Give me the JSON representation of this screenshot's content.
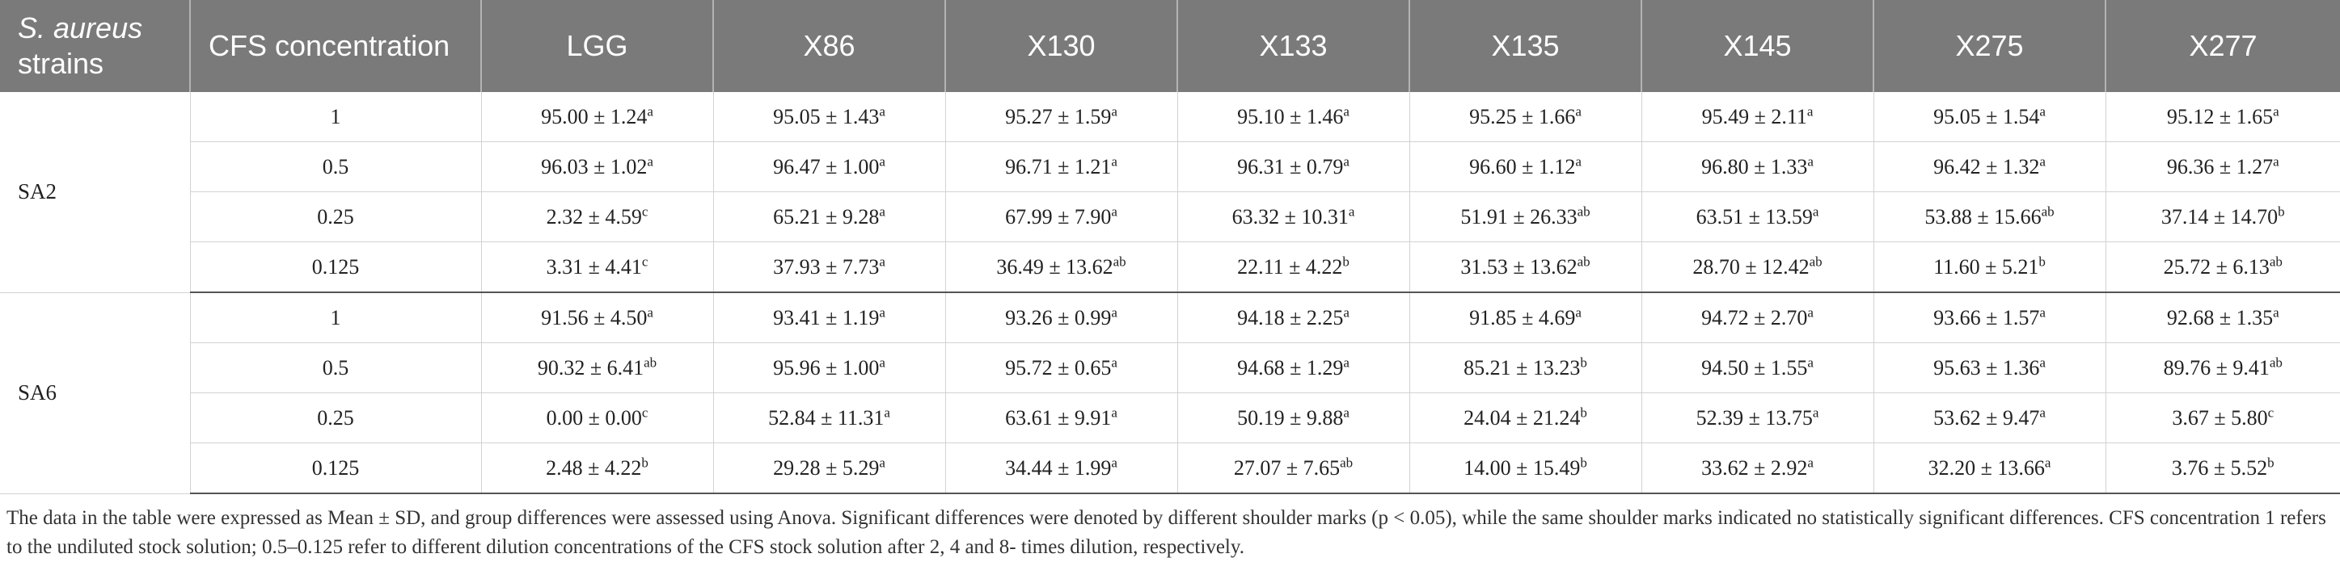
{
  "header": {
    "strain_prefix": "S. aureus",
    "strain_suffix": "strains",
    "conc": "CFS concentration",
    "cols": [
      "LGG",
      "X86",
      "X130",
      "X133",
      "X135",
      "X145",
      "X275",
      "X277"
    ]
  },
  "groups": [
    {
      "strain": "SA2",
      "rows": [
        {
          "conc": "1",
          "cells": [
            [
              "95.00 ± 1.24",
              "a"
            ],
            [
              "95.05 ± 1.43",
              "a"
            ],
            [
              "95.27 ± 1.59",
              "a"
            ],
            [
              "95.10 ± 1.46",
              "a"
            ],
            [
              "95.25 ± 1.66",
              "a"
            ],
            [
              "95.49 ± 2.11",
              "a"
            ],
            [
              "95.05 ± 1.54",
              "a"
            ],
            [
              "95.12 ± 1.65",
              "a"
            ]
          ]
        },
        {
          "conc": "0.5",
          "cells": [
            [
              "96.03 ± 1.02",
              "a"
            ],
            [
              "96.47 ± 1.00",
              "a"
            ],
            [
              "96.71 ± 1.21",
              "a"
            ],
            [
              "96.31 ± 0.79",
              "a"
            ],
            [
              "96.60 ± 1.12",
              "a"
            ],
            [
              "96.80 ± 1.33",
              "a"
            ],
            [
              "96.42 ± 1.32",
              "a"
            ],
            [
              "96.36 ± 1.27",
              "a"
            ]
          ]
        },
        {
          "conc": "0.25",
          "cells": [
            [
              "2.32 ± 4.59",
              "c"
            ],
            [
              "65.21 ± 9.28",
              "a"
            ],
            [
              "67.99 ± 7.90",
              "a"
            ],
            [
              "63.32 ± 10.31",
              "a"
            ],
            [
              "51.91 ± 26.33",
              "ab"
            ],
            [
              "63.51 ± 13.59",
              "a"
            ],
            [
              "53.88 ± 15.66",
              "ab"
            ],
            [
              "37.14 ± 14.70",
              "b"
            ]
          ]
        },
        {
          "conc": "0.125",
          "cells": [
            [
              "3.31 ± 4.41",
              "c"
            ],
            [
              "37.93 ± 7.73",
              "a"
            ],
            [
              "36.49 ± 13.62",
              "ab"
            ],
            [
              "22.11 ± 4.22",
              "b"
            ],
            [
              "31.53 ± 13.62",
              "ab"
            ],
            [
              "28.70 ± 12.42",
              "ab"
            ],
            [
              "11.60 ± 5.21",
              "b"
            ],
            [
              "25.72 ± 6.13",
              "ab"
            ]
          ]
        }
      ]
    },
    {
      "strain": "SA6",
      "rows": [
        {
          "conc": "1",
          "cells": [
            [
              "91.56 ± 4.50",
              "a"
            ],
            [
              "93.41 ± 1.19",
              "a"
            ],
            [
              "93.26 ± 0.99",
              "a"
            ],
            [
              "94.18 ± 2.25",
              "a"
            ],
            [
              "91.85 ± 4.69",
              "a"
            ],
            [
              "94.72 ± 2.70",
              "a"
            ],
            [
              "93.66 ± 1.57",
              "a"
            ],
            [
              "92.68 ± 1.35",
              "a"
            ]
          ]
        },
        {
          "conc": "0.5",
          "cells": [
            [
              "90.32 ± 6.41",
              "ab"
            ],
            [
              "95.96 ± 1.00",
              "a"
            ],
            [
              "95.72 ± 0.65",
              "a"
            ],
            [
              "94.68 ± 1.29",
              "a"
            ],
            [
              "85.21 ± 13.23",
              "b"
            ],
            [
              "94.50 ± 1.55",
              "a"
            ],
            [
              "95.63 ± 1.36",
              "a"
            ],
            [
              "89.76 ± 9.41",
              "ab"
            ]
          ]
        },
        {
          "conc": "0.25",
          "cells": [
            [
              "0.00 ± 0.00",
              "c"
            ],
            [
              "52.84 ± 11.31",
              "a"
            ],
            [
              "63.61 ± 9.91",
              "a"
            ],
            [
              "50.19 ± 9.88",
              "a"
            ],
            [
              "24.04 ± 21.24",
              "b"
            ],
            [
              "52.39 ± 13.75",
              "a"
            ],
            [
              "53.62 ± 9.47",
              "a"
            ],
            [
              "3.67 ± 5.80",
              "c"
            ]
          ]
        },
        {
          "conc": "0.125",
          "cells": [
            [
              "2.48 ± 4.22",
              "b"
            ],
            [
              "29.28 ± 5.29",
              "a"
            ],
            [
              "34.44 ± 1.99",
              "a"
            ],
            [
              "27.07 ± 7.65",
              "ab"
            ],
            [
              "14.00 ± 15.49",
              "b"
            ],
            [
              "33.62 ± 2.92",
              "a"
            ],
            [
              "32.20 ± 13.66",
              "a"
            ],
            [
              "3.76 ± 5.52",
              "b"
            ]
          ]
        }
      ]
    }
  ],
  "footnote": "The data in the table were expressed as Mean ± SD, and group differences were assessed using Anova. Significant differences were denoted by different shoulder marks (p < 0.05), while the same shoulder marks indicated no statistically significant differences. CFS concentration 1 refers to the undiluted stock solution; 0.5–0.125 refer to different dilution concentrations of the CFS stock solution after 2, 4 and 8- times dilution, respectively."
}
